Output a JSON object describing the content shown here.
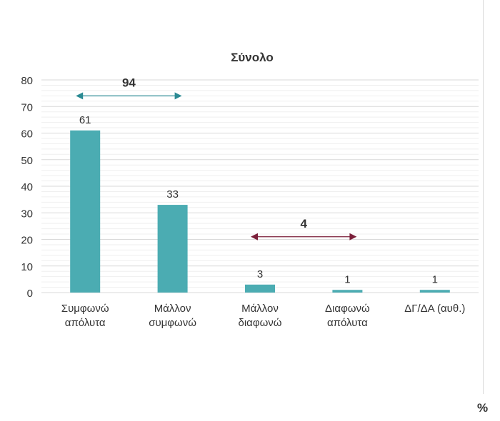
{
  "chart_data": {
    "type": "bar",
    "title": "Σύνολο",
    "unit_label": "%",
    "categories": [
      [
        "Συμφωνώ",
        "απόλυτα"
      ],
      [
        "Μάλλον",
        "συμφωνώ"
      ],
      [
        "Μάλλον",
        "διαφωνώ"
      ],
      [
        "Διαφωνώ",
        "απόλυτα"
      ],
      [
        "ΔΓ/ΔΑ (αυθ.)"
      ]
    ],
    "values": [
      61,
      33,
      3,
      1,
      1
    ],
    "value_labels": [
      "61",
      "33",
      "3",
      "1",
      "1"
    ],
    "ylim": [
      0,
      80
    ],
    "yticks": [
      0,
      10,
      20,
      30,
      40,
      50,
      60,
      70,
      80
    ],
    "grid": true,
    "bar_color": "#4bacb2",
    "annotations": [
      {
        "label": "94",
        "from_category": 0,
        "to_category": 1,
        "y": 74,
        "color": "#2a8a93"
      },
      {
        "label": "4",
        "from_category": 2,
        "to_category": 3,
        "y": 21,
        "color": "#7b1f3a"
      }
    ]
  }
}
